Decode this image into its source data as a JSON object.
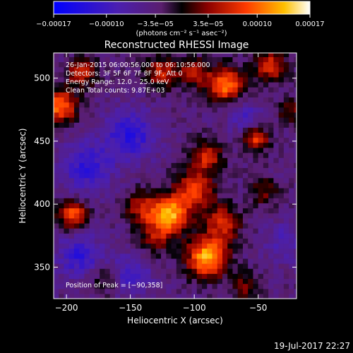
{
  "colorbar": {
    "tick_labels": [
      "−0.00017",
      "−0.00010",
      "−3.5e−05",
      "3.5e−05",
      "0.00010",
      "0.00017"
    ],
    "tick_values": [
      -0.00017,
      -0.0001,
      -3.5e-05,
      3.5e-05,
      0.0001,
      0.00017
    ],
    "range": [
      -0.00017,
      0.00017
    ],
    "unit_label": "(photons cm⁻² s⁻¹ asec⁻²)"
  },
  "chart_data": {
    "type": "heatmap",
    "title": "Reconstructed RHESSI Image",
    "xlabel": "Heliocentric X (arcsec)",
    "ylabel": "Heliocentric Y (arcsec)",
    "xlim": [
      -210,
      -20
    ],
    "ylim": [
      325,
      520
    ],
    "x_ticks": [
      -200,
      -150,
      -100,
      -50
    ],
    "y_ticks": [
      350,
      400,
      450,
      500
    ],
    "grid": false,
    "peak": {
      "x": -90,
      "y": 358
    },
    "info_lines": [
      "26-Jan-2015 06:00:56.000 to 06:10:56.000",
      "Detectors: 3F 5F 6F 7F 8F 9F, Att 0",
      "Energy Range: 12.0 – 25.0 keV",
      "Clean     Total counts: 9.87E+03"
    ],
    "peak_label": "Position of Peak = [−90,358]",
    "sources": [
      {
        "x": -90,
        "y": 358,
        "amp": 1.0,
        "sigma": 11
      },
      {
        "x": -118,
        "y": 392,
        "amp": 0.92,
        "sigma": 10
      },
      {
        "x": -100,
        "y": 412,
        "amp": 0.65,
        "sigma": 11
      },
      {
        "x": -78,
        "y": 385,
        "amp": 0.6,
        "sigma": 10
      },
      {
        "x": -140,
        "y": 398,
        "amp": 0.55,
        "sigma": 9
      },
      {
        "x": -130,
        "y": 375,
        "amp": 0.45,
        "sigma": 10
      },
      {
        "x": -90,
        "y": 438,
        "amp": 0.55,
        "sigma": 9
      },
      {
        "x": -52,
        "y": 452,
        "amp": 0.7,
        "sigma": 7
      },
      {
        "x": -45,
        "y": 410,
        "amp": 0.35,
        "sigma": 8
      },
      {
        "x": -205,
        "y": 478,
        "amp": 0.85,
        "sigma": 9
      },
      {
        "x": -195,
        "y": 392,
        "amp": 0.75,
        "sigma": 8
      },
      {
        "x": -188,
        "y": 505,
        "amp": 0.6,
        "sigma": 8
      },
      {
        "x": -125,
        "y": 505,
        "amp": 0.55,
        "sigma": 9
      },
      {
        "x": -75,
        "y": 495,
        "amp": 0.85,
        "sigma": 10
      },
      {
        "x": -100,
        "y": 505,
        "amp": 0.5,
        "sigma": 8
      },
      {
        "x": -40,
        "y": 510,
        "amp": 0.6,
        "sigma": 9
      },
      {
        "x": -25,
        "y": 475,
        "amp": 0.4,
        "sigma": 7
      },
      {
        "x": -170,
        "y": 340,
        "amp": 0.3,
        "sigma": 8
      },
      {
        "x": -60,
        "y": 335,
        "amp": 0.35,
        "sigma": 8
      },
      {
        "x": -185,
        "y": 430,
        "amp": -0.45,
        "sigma": 14
      },
      {
        "x": -150,
        "y": 455,
        "amp": -0.5,
        "sigma": 14
      },
      {
        "x": -190,
        "y": 360,
        "amp": -0.45,
        "sigma": 12
      },
      {
        "x": -150,
        "y": 345,
        "amp": -0.35,
        "sigma": 12
      },
      {
        "x": -60,
        "y": 470,
        "amp": -0.3,
        "sigma": 10
      },
      {
        "x": -30,
        "y": 370,
        "amp": -0.3,
        "sigma": 10
      }
    ]
  },
  "footer": {
    "timestamp": "19-Jul-2017 22:27"
  }
}
